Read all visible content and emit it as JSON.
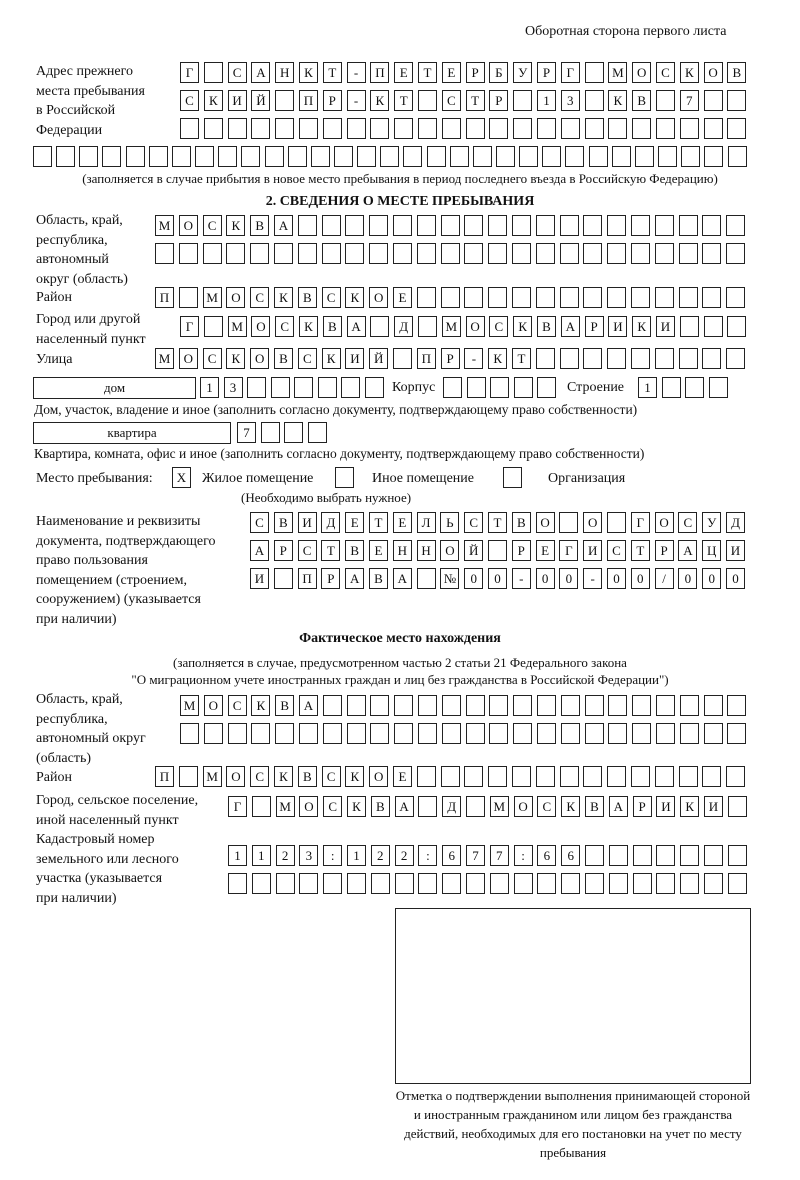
{
  "header": {
    "page_side": "Оборотная сторона первого листа"
  },
  "previous_address": {
    "label": "Адрес прежнего\nместа пребывания\nв Российской\nФедерации",
    "rows": [
      [
        "Г",
        "",
        "С",
        "А",
        "Н",
        "К",
        "Т",
        "-",
        "П",
        "Е",
        "Т",
        "Е",
        "Р",
        "Б",
        "У",
        "Р",
        "Г",
        "",
        "М",
        "О",
        "С",
        "К",
        "О",
        "В"
      ],
      [
        "С",
        "К",
        "И",
        "Й",
        "",
        "П",
        "Р",
        "-",
        "К",
        "Т",
        "",
        "С",
        "Т",
        "Р",
        "",
        "1",
        "3",
        "",
        "К",
        "В",
        "",
        "7"
      ],
      [],
      []
    ],
    "note": "(заполняется в случае прибытия в новое место пребывания в период последнего въезда в Российскую Федерацию)"
  },
  "section2": {
    "title": "2. СВЕДЕНИЯ О МЕСТЕ ПРЕБЫВАНИЯ",
    "region_label": "Область, край,\nреспублика,\nавтономный\nокруг (область)",
    "region_rows": [
      [
        "М",
        "О",
        "С",
        "К",
        "В",
        "А"
      ],
      []
    ],
    "district_label": "Район",
    "district_row": [
      "П",
      "",
      "М",
      "О",
      "С",
      "К",
      "В",
      "С",
      "К",
      "О",
      "Е"
    ],
    "city_label": "Город или другой\nнаселенный пункт",
    "city_row": [
      "Г",
      "",
      "М",
      "О",
      "С",
      "К",
      "В",
      "А",
      "",
      "Д",
      "",
      "М",
      "О",
      "С",
      "К",
      "В",
      "А",
      "Р",
      "И",
      "К",
      "И"
    ],
    "street_label": "Улица",
    "street_row": [
      "М",
      "О",
      "С",
      "К",
      "О",
      "В",
      "С",
      "К",
      "И",
      "Й",
      "",
      "П",
      "Р",
      "-",
      "К",
      "Т"
    ],
    "house_type": "дом",
    "house_row": [
      "1",
      "3"
    ],
    "building_label": "Корпус",
    "building_row": [],
    "structure_label": "Строение",
    "structure_row": [
      "1"
    ],
    "house_note": "Дом, участок, владение и иное (заполнить согласно документу, подтверждающему право собственности)",
    "apt_type": "квартира",
    "apt_row": [
      "7"
    ],
    "apt_note": "Квартира, комната, офис и иное (заполнить согласно документу, подтверждающему право собственности)",
    "stay_label": "Место пребывания:",
    "stay_options": [
      {
        "mark": "X",
        "label": "Жилое помещение"
      },
      {
        "mark": "",
        "label": "Иное помещение"
      },
      {
        "mark": "",
        "label": "Организация"
      }
    ],
    "stay_note": "(Необходимо выбрать нужное)",
    "doc_label": "Наименование и реквизиты\nдокумента, подтверждающего\nправо пользования\nпомещением (строением,\nсооружением) (указывается\nпри наличии)",
    "doc_rows": [
      [
        "С",
        "В",
        "И",
        "Д",
        "Е",
        "Т",
        "Е",
        "Л",
        "Ь",
        "С",
        "Т",
        "В",
        "О",
        "",
        "О",
        "",
        "Г",
        "О",
        "С",
        "У",
        "Д"
      ],
      [
        "А",
        "Р",
        "С",
        "Т",
        "В",
        "Е",
        "Н",
        "Н",
        "О",
        "Й",
        "",
        "Р",
        "Е",
        "Г",
        "И",
        "С",
        "Т",
        "Р",
        "А",
        "Ц",
        "И"
      ],
      [
        "И",
        "",
        "П",
        "Р",
        "А",
        "В",
        "А",
        "",
        "№",
        "0",
        "0",
        "-",
        "0",
        "0",
        "-",
        "0",
        "0",
        "/",
        "0",
        "0",
        "0"
      ]
    ]
  },
  "actual": {
    "title": "Фактическое место нахождения",
    "note1": "(заполняется в случае, предусмотренном частью 2 статьи 21 Федерального закона",
    "note2": "\"О миграционном учете иностранных граждан и лиц без гражданства в Российской Федерации\")",
    "region_label": "Область, край,\nреспублика,\nавтономный округ\n(область)",
    "region_rows": [
      [
        "М",
        "О",
        "С",
        "К",
        "В",
        "А"
      ],
      []
    ],
    "district_label": "Район",
    "district_row": [
      "П",
      "",
      "М",
      "О",
      "С",
      "К",
      "В",
      "С",
      "К",
      "О",
      "Е"
    ],
    "city_label": "Город, сельское поселение,\nиной населенный пункт",
    "city_row": [
      "Г",
      "",
      "М",
      "О",
      "С",
      "К",
      "В",
      "А",
      "",
      "Д",
      "",
      "М",
      "О",
      "С",
      "К",
      "В",
      "А",
      "Р",
      "И",
      "К",
      "И"
    ],
    "cadastral_label": "Кадастровый номер\nземельного или лесного\nучастка (указывается\nпри наличии)",
    "cadastral_rows": [
      [
        "1",
        "1",
        "2",
        "3",
        ":",
        "1",
        "2",
        "2",
        ":",
        "6",
        "7",
        "7",
        ":",
        "6",
        "6"
      ],
      []
    ]
  },
  "confirmation": {
    "caption": "Отметка о подтверждении выполнения принимающей стороной и иностранным гражданином или лицом без гражданства действий, необходимых для его постановки на учет по месту пребывания"
  }
}
